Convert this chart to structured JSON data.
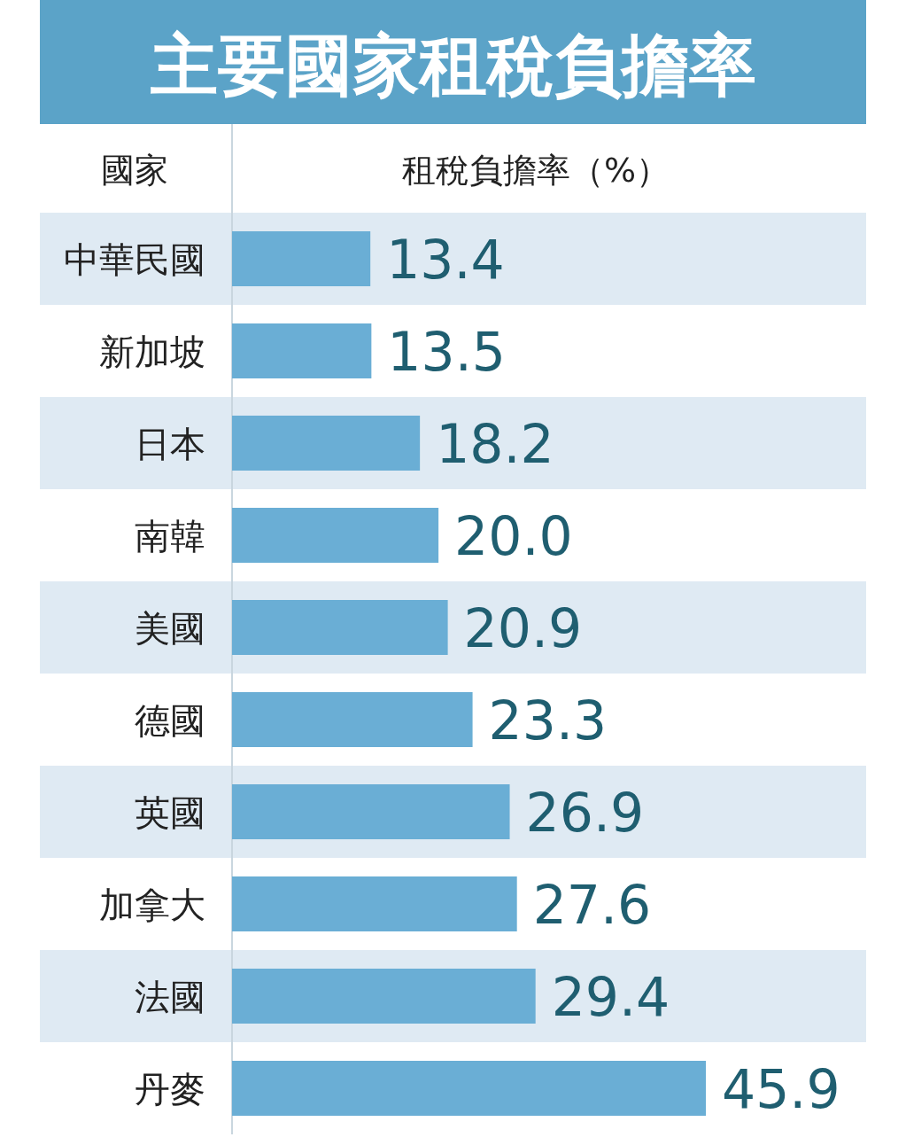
{
  "chart_data": {
    "type": "bar",
    "orientation": "horizontal",
    "title": "主要國家租稅負擔率",
    "ylabel": "國家",
    "xlabel": "租稅負擔率（%）",
    "categories": [
      "中華民國",
      "新加坡",
      "日本",
      "南韓",
      "美國",
      "德國",
      "英國",
      "加拿大",
      "法國",
      "丹麥"
    ],
    "values": [
      13.4,
      13.5,
      18.2,
      20.0,
      20.9,
      23.3,
      26.9,
      27.6,
      29.4,
      45.9
    ],
    "value_labels": [
      "13.4",
      "13.5",
      "18.2",
      "20.0",
      "20.9",
      "23.3",
      "26.9",
      "27.6",
      "29.4",
      "45.9"
    ],
    "color": "#6aaed5"
  }
}
